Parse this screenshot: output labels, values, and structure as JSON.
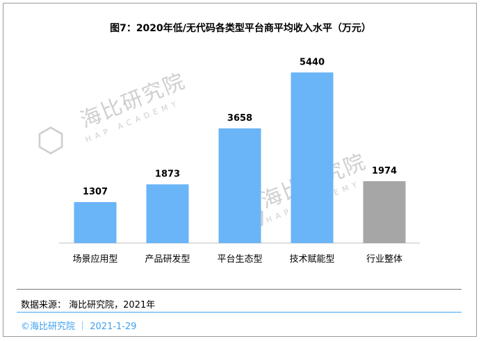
{
  "header": {
    "title": "图7：2020年低/无代码各类型平台商平均收入水平（万元）"
  },
  "chart_data": {
    "type": "bar",
    "title": "图7：2020年低/无代码各类型平台商平均收入水平（万元）",
    "categories": [
      "场景应用型",
      "产品研发型",
      "平台生态型",
      "技术赋能型",
      "行业整体"
    ],
    "values": [
      1307,
      1873,
      3658,
      5440,
      1974
    ],
    "data_labels": [
      "1307",
      "1873",
      "3658",
      "5440",
      "1974"
    ],
    "colors": [
      "#6ab4f8",
      "#6ab4f8",
      "#6ab4f8",
      "#6ab4f8",
      "#a6a6a6"
    ],
    "ylim": [
      0,
      6200
    ],
    "xlabel": "",
    "ylabel": "",
    "grid": false,
    "legend": "none"
  },
  "watermark": {
    "name_cn": "海比研究院",
    "name_en": "HAP ACADEMY"
  },
  "source": {
    "text": "数据来源： 海比研究院，2021年"
  },
  "footer": {
    "text": "©海比研究院 ｜ 2021-1-29"
  }
}
